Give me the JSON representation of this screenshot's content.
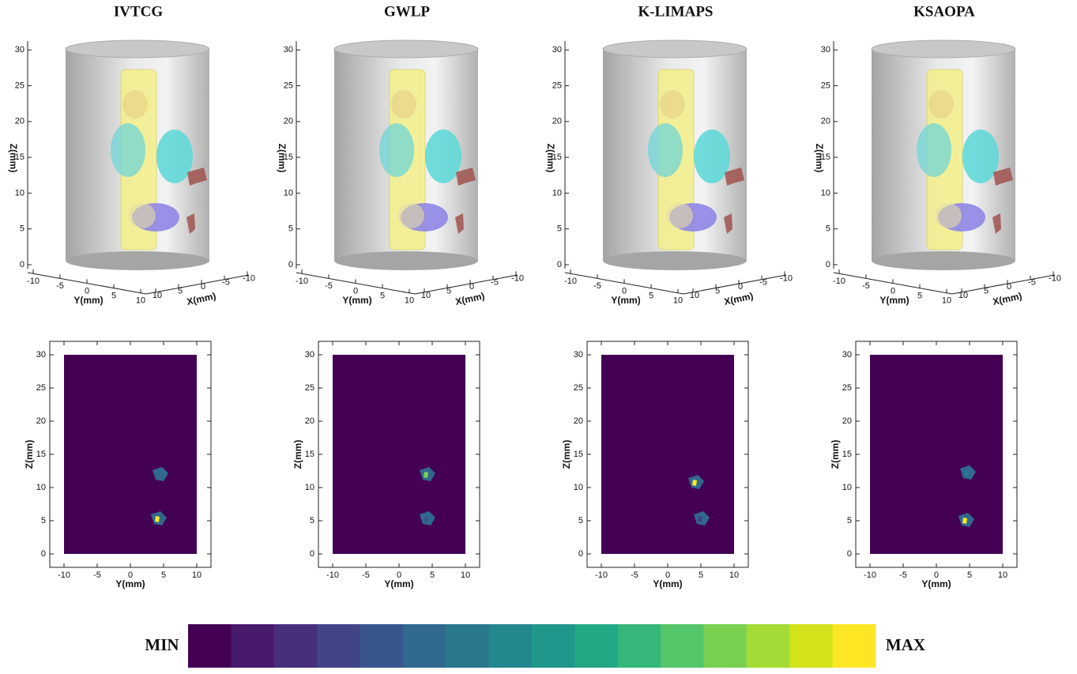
{
  "panels": [
    {
      "title": "IVTCG"
    },
    {
      "title": "GWLP"
    },
    {
      "title": "K-LIMAPS"
    },
    {
      "title": "KSAOPA"
    }
  ],
  "plot3d": {
    "z_label": "Z(mm)",
    "y_label": "Y(mm)",
    "x_label": "X(mm)",
    "z_ticks": [
      "0",
      "5",
      "10",
      "15",
      "20",
      "25",
      "30"
    ],
    "y_ticks": [
      "-10",
      "-5",
      "0",
      "5",
      "10"
    ],
    "x_ticks": [
      "10",
      "5",
      "0",
      "-5",
      "-10"
    ]
  },
  "plot2d": {
    "z_label": "Z(mm)",
    "y_label": "Y(mm)",
    "z_ticks": [
      "0",
      "5",
      "10",
      "15",
      "20",
      "25",
      "30"
    ],
    "y_ticks": [
      "-10",
      "-5",
      "0",
      "5",
      "10"
    ],
    "background": "#440154"
  },
  "colorbar": {
    "min_label": "MIN",
    "max_label": "MAX",
    "colors": [
      "#440154",
      "#481a6c",
      "#472f7d",
      "#414487",
      "#39568c",
      "#31688e",
      "#2a788e",
      "#23888e",
      "#1f988b",
      "#22a884",
      "#35b779",
      "#54c568",
      "#7ad151",
      "#a5db36",
      "#d2e21b",
      "#fde725"
    ]
  }
}
